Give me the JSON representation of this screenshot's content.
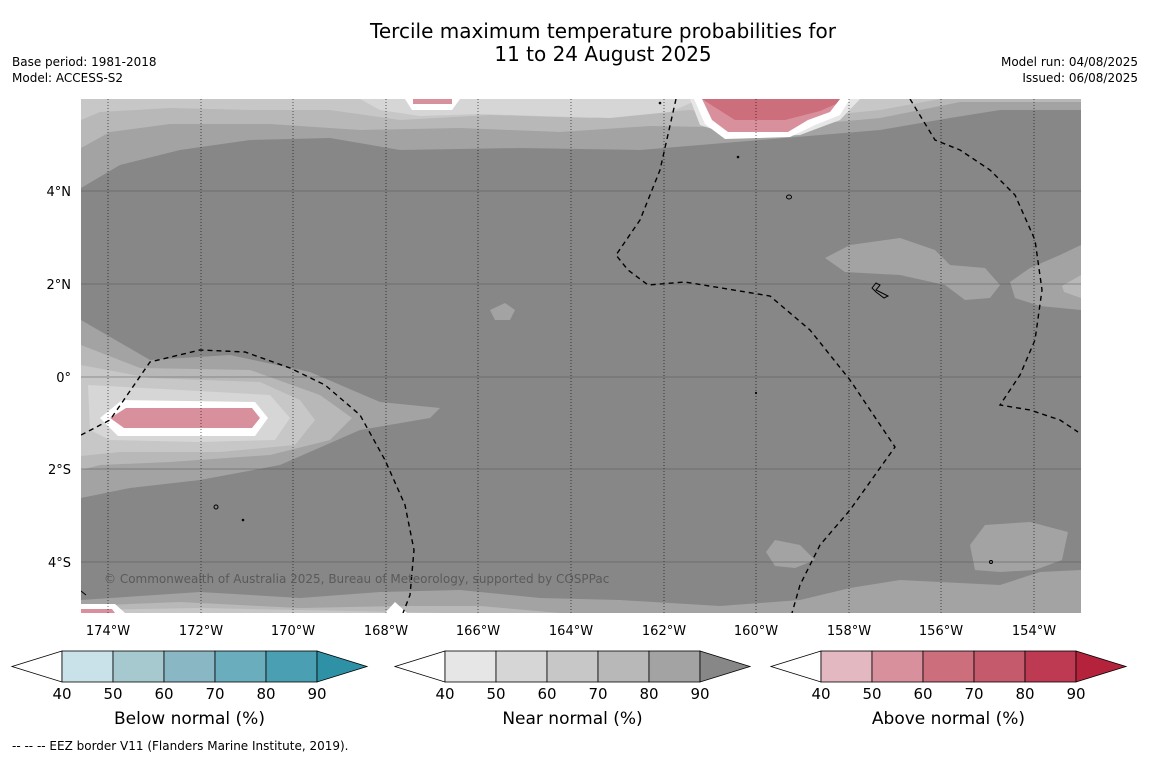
{
  "header": {
    "title_line1": "Tercile maximum temperature probabilities for",
    "title_line2": "11 to 24 August 2025",
    "base_period": "Base period: 1981-2018",
    "model": "Model: ACCESS-S2",
    "model_run": "Model run: 04/08/2025",
    "issued": "Issued: 06/08/2025"
  },
  "map": {
    "lon_labels": [
      "174°W",
      "172°W",
      "170°W",
      "168°W",
      "166°W",
      "164°W",
      "162°W",
      "160°W",
      "158°W",
      "156°W",
      "154°W"
    ],
    "lat_labels": [
      "4°N",
      "2°N",
      "0°",
      "2°S",
      "4°S"
    ],
    "credit": "© Commonwealth of Australia 2025, Bureau of Meteorology, supported by COSPPac",
    "colors": {
      "near_90": "#878787",
      "near_80": "#a3a3a3",
      "near_70": "#b8b8b8",
      "near_60": "#c7c7c7",
      "near_50": "#d6d6d6",
      "near_40": "#e6e6e6",
      "above_50": "#d8919c",
      "above_60": "#cc6e7b"
    }
  },
  "legends": [
    {
      "label": "Below normal (%)",
      "ticks": [
        "40",
        "50",
        "60",
        "70",
        "80",
        "90"
      ],
      "colors": [
        "#ffffff",
        "#c9e2ea",
        "#a6c8cf",
        "#8ab7c4",
        "#6aaebd",
        "#4a9fb2",
        "#2e91a6"
      ]
    },
    {
      "label": "Near normal (%)",
      "ticks": [
        "40",
        "50",
        "60",
        "70",
        "80",
        "90"
      ],
      "colors": [
        "#ffffff",
        "#e6e6e6",
        "#d6d6d6",
        "#c7c7c7",
        "#b8b8b8",
        "#a3a3a3",
        "#878787"
      ]
    },
    {
      "label": "Above normal (%)",
      "ticks": [
        "40",
        "50",
        "60",
        "70",
        "80",
        "90"
      ],
      "colors": [
        "#ffffff",
        "#e3b8c0",
        "#d8919c",
        "#cc6e7b",
        "#c45a6b",
        "#bd3a52",
        "#b5223c"
      ]
    }
  ],
  "footnote": "--  --  -- EEZ border V11 (Flanders Marine Institute, 2019)."
}
